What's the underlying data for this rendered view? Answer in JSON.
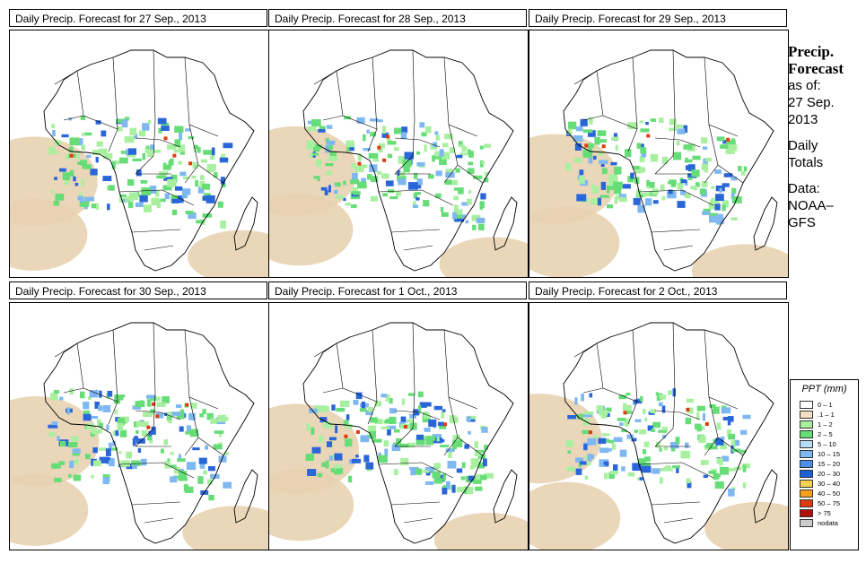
{
  "panels": [
    {
      "title": "Daily Precip. Forecast for  27 Sep., 2013"
    },
    {
      "title": "Daily Precip. Forecast for  28 Sep., 2013"
    },
    {
      "title": "Daily Precip. Forecast for  29 Sep., 2013"
    },
    {
      "title": "Daily Precip. Forecast for  30 Sep., 2013"
    },
    {
      "title": "Daily Precip. Forecast for  1 Oct., 2013"
    },
    {
      "title": "Daily Precip. Forecast for  2 Oct., 2013"
    }
  ],
  "side": {
    "heading_1": "Precip.",
    "heading_2": "Forecast",
    "asof": "as of:",
    "date_1": "27 Sep.",
    "date_2": "2013",
    "daily": "Daily",
    "totals": "Totals",
    "data": "Data:",
    "source_1": "NOAA–",
    "source_2": "GFS"
  },
  "legend": {
    "title": "PPT (mm)",
    "items": [
      {
        "label": "0 – 1",
        "color": "#ffffff"
      },
      {
        "label": ".1 – 1",
        "color": "#f2dfc4"
      },
      {
        "label": "1 – 2",
        "color": "#a8f0a0"
      },
      {
        "label": "2 – 5",
        "color": "#66dd77"
      },
      {
        "label": "5 – 10",
        "color": "#b3dcf5"
      },
      {
        "label": "10 – 15",
        "color": "#7fb8f0"
      },
      {
        "label": "15 – 20",
        "color": "#4d8fe6"
      },
      {
        "label": "20 – 30",
        "color": "#1f5fd6"
      },
      {
        "label": "30 – 40",
        "color": "#f5d055"
      },
      {
        "label": "40 – 50",
        "color": "#f5a020"
      },
      {
        "label": "50 – 75",
        "color": "#e03a10"
      },
      {
        "label": "> 75",
        "color": "#b01010"
      },
      {
        "label": "nodata",
        "color": "#cccccc"
      }
    ]
  },
  "colors": {
    "sand": "#e8d2b0",
    "light_green": "#a8f0a0",
    "green": "#66dd77",
    "blue": "#7fb8f0",
    "dark_blue": "#2a66d8",
    "red": "#e03a10"
  }
}
